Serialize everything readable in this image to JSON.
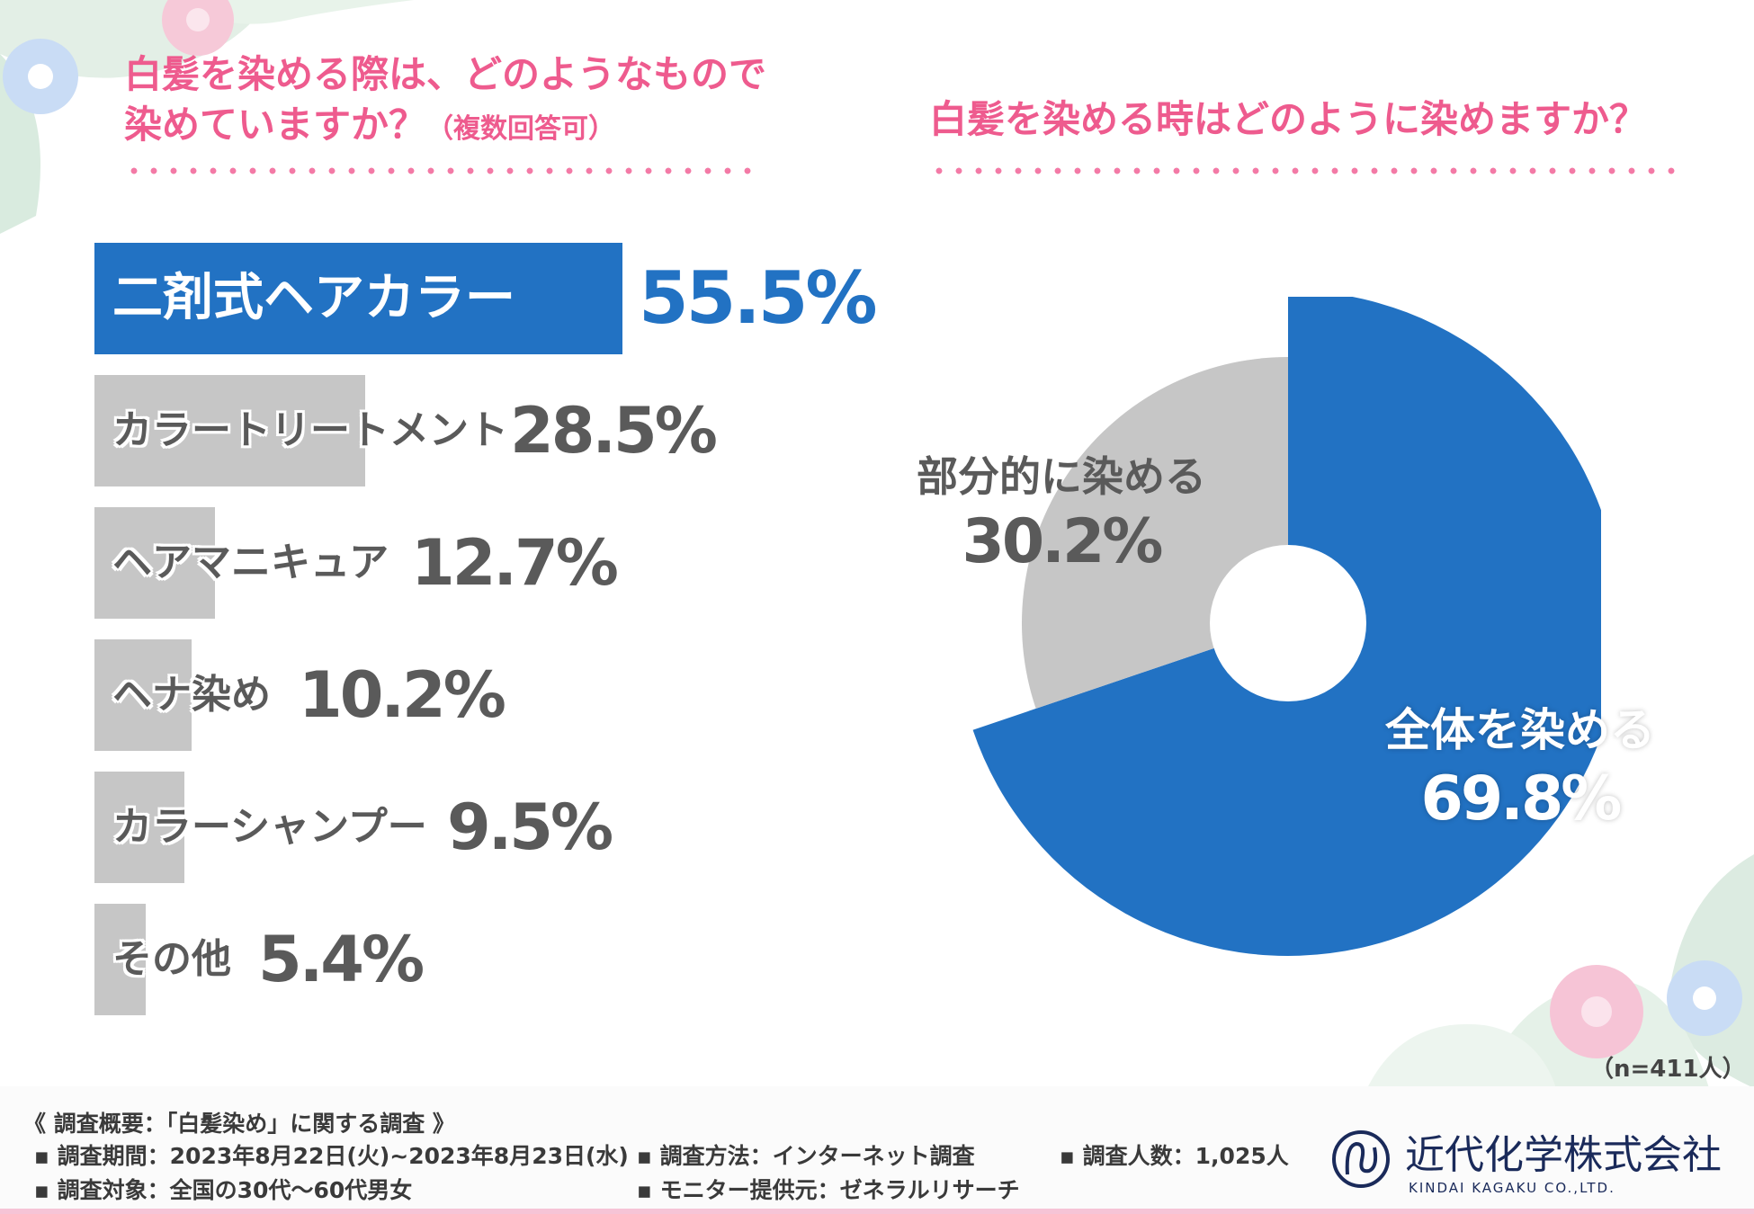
{
  "left_chart": {
    "title_line1": "白髪を染める際は、どのようなもので",
    "title_line2": "染めていますか？",
    "title_note": "（複数回答可）"
  },
  "right_chart": {
    "title": "白髪を染める時はどのように染めますか？",
    "sample_size": "（n=411人）"
  },
  "chart_data": [
    {
      "type": "bar",
      "orientation": "horizontal",
      "title": "白髪を染める際は、どのようなもので染めていますか？（複数回答可）",
      "categories": [
        "二剤式ヘアカラー",
        "カラートリートメント",
        "ヘアマニキュア",
        "ヘナ染め",
        "カラーシャンプー",
        "その他"
      ],
      "values": [
        55.5,
        28.5,
        12.7,
        10.2,
        9.5,
        5.4
      ],
      "value_labels": [
        "55.5%",
        "28.5%",
        "12.7%",
        "10.2%",
        "9.5%",
        "5.4%"
      ],
      "unit": "%",
      "colors": [
        "#2272c3",
        "#c6c6c6",
        "#c6c6c6",
        "#c6c6c6",
        "#c6c6c6",
        "#c6c6c6"
      ]
    },
    {
      "type": "pie",
      "donut": true,
      "title": "白髪を染める時はどのように染めますか？",
      "categories": [
        "全体を染める",
        "部分的に染める"
      ],
      "values": [
        69.8,
        30.2
      ],
      "value_labels": [
        "69.8%",
        "30.2%"
      ],
      "colors": [
        "#2272c3",
        "#c6c6c6"
      ],
      "n": 411
    }
  ],
  "footer": {
    "heading": "《 調査概要：「白髪染め」に関する調査 》",
    "period": "調査期間：2023年8月22日(火)~2023年8月23日(水)",
    "method": "調査方法：インターネット調査",
    "count": "調査人数：1,025人",
    "target": "調査対象：全国の30代～60代男女",
    "provider": "モニター提供元：ゼネラルリサーチ"
  },
  "logo": {
    "name": "近代化学株式会社",
    "sub": "KINDAI KAGAKU CO.,LTD."
  },
  "colors": {
    "accent_pink": "#ee5b8e",
    "brand_blue": "#2272c3",
    "gray": "#c6c6c6",
    "text_gray": "#5a5a5a"
  }
}
